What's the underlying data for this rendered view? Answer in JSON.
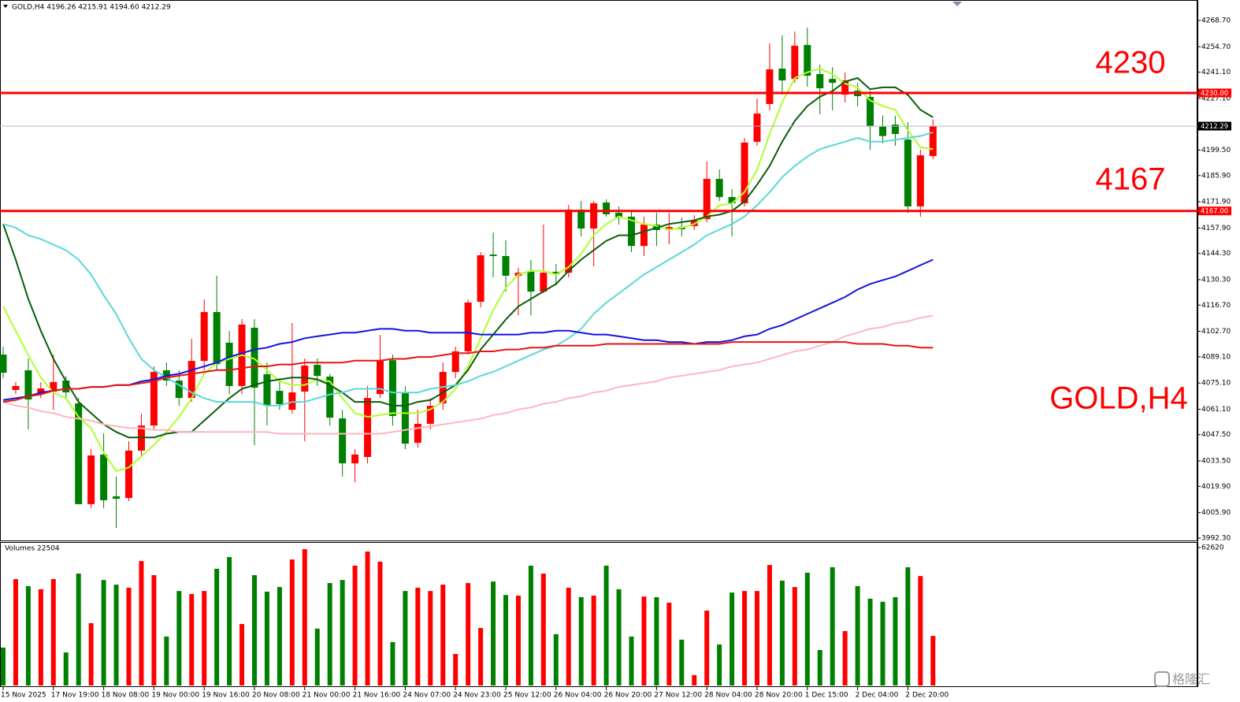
{
  "chart_data": [
    {
      "type": "candlestick",
      "title": "GOLD,H4  4196.26 4215.91 4194.60 4212.29",
      "categories": [
        "15 Nov 2025",
        null,
        null,
        null,
        "17 Nov 19:00",
        null,
        null,
        null,
        "18 Nov 08:00",
        null,
        null,
        null,
        "19 Nov 00:00",
        null,
        null,
        null,
        "19 Nov 16:00",
        null,
        null,
        null,
        "20 Nov 08:00",
        null,
        null,
        null,
        "21 Nov 00:00",
        null,
        null,
        null,
        "21 Nov 16:00",
        null,
        null,
        null,
        "24 Nov 07:00",
        null,
        null,
        null,
        "24 Nov 23:00",
        null,
        null,
        null,
        "25 Nov 12:00",
        null,
        null,
        null,
        "26 Nov 04:00",
        null,
        null,
        null,
        "26 Nov 20:00",
        null,
        null,
        null,
        "27 Nov 12:00",
        null,
        null,
        null,
        "28 Nov 04:00",
        null,
        null,
        null,
        "28 Nov 20:00",
        null,
        null,
        null,
        "1 Dec 15:00",
        null,
        null,
        null,
        "2 Dec 04:00",
        null,
        null,
        null,
        "2 Dec 20:00",
        null,
        null
      ],
      "open": [
        4090.3,
        4071.4,
        4081.9,
        4069.2,
        4070.5,
        4076.4,
        4064.2,
        4010.4,
        4036.9,
        4014.6,
        4013.7,
        4039.0,
        4052.4,
        4081.9,
        4076.4,
        4067.1,
        4086.9,
        4113.0,
        4096.6,
        4073.5,
        4104.6,
        4079.8,
        4070.9,
        4060.8,
        4070.5,
        4084.8,
        4078.5,
        4056.2,
        4032.2,
        4035.6,
        4069.2,
        4087.3,
        4070.1,
        4043.2,
        4053.3,
        4064.2,
        4081.0,
        4092.0,
        4118.5,
        4143.7,
        4142.9,
        4132.4,
        4134.5,
        4123.9,
        4134.5,
        4134.0,
        4167.7,
        4157.6,
        4171.5,
        4166.0,
        4163.9,
        4148.3,
        4159.7,
        4156.8,
        4158.4,
        4158.9,
        4162.6,
        4184.1,
        4174.4,
        4171.1,
        4203.9,
        4224.1,
        4243.0,
        4237.5,
        4255.6,
        4240.1,
        4237.5,
        4229.1,
        4231.2,
        4227.9,
        4212.0,
        4213.1,
        4205.1,
        4169.4,
        4196.26
      ],
      "high": [
        4094.5,
        4075.6,
        4088.2,
        4075.6,
        4090.3,
        4078.9,
        4067.1,
        4039.8,
        4048.2,
        4025.1,
        4044.0,
        4058.7,
        4084.0,
        4086.1,
        4081.9,
        4098.7,
        4119.7,
        4132.4,
        4102.9,
        4109.2,
        4109.2,
        4086.1,
        4077.7,
        4107.1,
        4088.2,
        4088.2,
        4079.8,
        4060.8,
        4039.8,
        4073.5,
        4100.8,
        4090.3,
        4073.5,
        4060.8,
        4067.1,
        4086.1,
        4094.5,
        4119.7,
        4145.0,
        4155.5,
        4151.3,
        4136.6,
        4140.8,
        4159.7,
        4138.7,
        4170.2,
        4172.3,
        4172.3,
        4173.2,
        4169.4,
        4166.9,
        4163.9,
        4166.0,
        4166.0,
        4163.5,
        4164.7,
        4193.4,
        4189.1,
        4178.6,
        4206.0,
        4227.0,
        4256.5,
        4260.7,
        4262.8,
        4264.9,
        4245.1,
        4243.8,
        4240.9,
        4235.4,
        4231.2,
        4218.0,
        4217.8,
        4214.4,
        4199.7,
        4215.91
      ],
      "low": [
        4077.7,
        4069.2,
        4050.3,
        4067.1,
        4060.8,
        4067.1,
        4010.4,
        4008.2,
        4008.2,
        3997.7,
        4012.0,
        4035.6,
        4050.3,
        4073.5,
        4062.9,
        4065.0,
        4081.9,
        4081.9,
        4069.2,
        4069.2,
        4041.9,
        4052.4,
        4060.8,
        4058.7,
        4044.0,
        4073.5,
        4052.4,
        4025.1,
        4022.1,
        4032.2,
        4067.1,
        4052.4,
        4039.8,
        4040.6,
        4050.3,
        4060.8,
        4077.7,
        4090.3,
        4115.5,
        4131.5,
        4123.9,
        4111.3,
        4111.3,
        4123.1,
        4127.3,
        4131.5,
        4153.4,
        4137.4,
        4163.9,
        4159.7,
        4145.0,
        4142.9,
        4148.3,
        4149.2,
        4153.4,
        4156.8,
        4161.0,
        4172.3,
        4153.4,
        4169.4,
        4201.8,
        4220.7,
        4229.1,
        4235.4,
        4233.3,
        4218.6,
        4220.7,
        4224.9,
        4222.8,
        4199.7,
        4203.0,
        4201.8,
        4166.0,
        4163.9,
        4194.6
      ],
      "close": [
        4080.6,
        4073.5,
        4066.3,
        4072.2,
        4075.6,
        4070.1,
        4010.4,
        4036.4,
        4012.5,
        4013.3,
        4039.0,
        4052.4,
        4081.0,
        4076.4,
        4067.1,
        4086.9,
        4113.0,
        4085.2,
        4073.5,
        4106.3,
        4072.6,
        4062.9,
        4063.8,
        4070.1,
        4084.4,
        4078.9,
        4056.6,
        4032.2,
        4036.9,
        4067.1,
        4087.3,
        4057.5,
        4042.7,
        4053.3,
        4062.9,
        4081.0,
        4092.0,
        4118.1,
        4143.3,
        4142.9,
        4132.4,
        4134.0,
        4123.9,
        4134.0,
        4133.2,
        4167.7,
        4157.6,
        4171.1,
        4165.2,
        4163.5,
        4148.3,
        4159.7,
        4156.8,
        4158.4,
        4157.2,
        4161.8,
        4184.1,
        4174.4,
        4171.1,
        4203.5,
        4219.0,
        4242.6,
        4236.7,
        4255.2,
        4239.2,
        4232.5,
        4235.4,
        4236.7,
        4228.3,
        4212.3,
        4207.0,
        4208.1,
        4169.4,
        4196.7,
        4212.29
      ],
      "up_color": "#ff0000",
      "down_color": "#008000",
      "overlays": [
        {
          "color": "#adff2f",
          "values": [
            4116,
            4103,
            4090,
            4078,
            4070,
            4067,
            4057,
            4051,
            4038,
            4028,
            4030,
            4036,
            4042,
            4049,
            4057,
            4067,
            4080,
            4086,
            4088,
            4090,
            4088,
            4082,
            4076,
            4074,
            4074,
            4077,
            4076,
            4067,
            4059,
            4057,
            4058,
            4059,
            4059,
            4059,
            4061,
            4065,
            4072,
            4084,
            4099,
            4114,
            4126,
            4133,
            4135,
            4135,
            4133,
            4137,
            4144,
            4154,
            4160,
            4164,
            4162,
            4160,
            4159,
            4157,
            4158,
            4160,
            4164,
            4170,
            4171,
            4177,
            4189,
            4208,
            4225,
            4238,
            4241,
            4243,
            4240,
            4235,
            4233,
            4226,
            4223,
            4221,
            4210,
            4201,
            4200
          ]
        },
        {
          "color": "#0b5d0b",
          "values": [
            4160,
            4141,
            4120,
            4103,
            4088,
            4076,
            4065,
            4059,
            4053,
            4049,
            4046,
            4046,
            4046,
            4048,
            4049,
            4049,
            4055,
            4061,
            4067,
            4072,
            4074,
            4076,
            4077,
            4078,
            4078,
            4077,
            4074,
            4070,
            4065,
            4065,
            4065,
            4063,
            4063,
            4065,
            4066,
            4070,
            4074,
            4082,
            4093,
            4101,
            4109,
            4116,
            4120,
            4124,
            4128,
            4135,
            4141,
            4146,
            4151,
            4154,
            4154,
            4156,
            4158,
            4160,
            4161,
            4162,
            4164,
            4165,
            4167,
            4172,
            4181,
            4191,
            4204,
            4215,
            4223,
            4228,
            4231,
            4236,
            4238,
            4232,
            4233,
            4233,
            4229,
            4221,
            4217
          ]
        },
        {
          "color": "#5ad8d8",
          "values": [
            4160,
            4158,
            4154,
            4152,
            4149,
            4146,
            4141,
            4133,
            4122,
            4112,
            4099,
            4088,
            4082,
            4078,
            4074,
            4070,
            4067,
            4065,
            4065,
            4065,
            4065,
            4063,
            4063,
            4065,
            4065,
            4067,
            4069,
            4070,
            4072,
            4072,
            4072,
            4070,
            4070,
            4070,
            4072,
            4073,
            4074,
            4076,
            4079,
            4081,
            4084,
            4087,
            4090,
            4093,
            4095,
            4099,
            4104,
            4112,
            4118,
            4123,
            4128,
            4133,
            4137,
            4141,
            4145,
            4149,
            4154,
            4157,
            4160,
            4164,
            4170,
            4177,
            4185,
            4191,
            4196,
            4200,
            4202,
            4204,
            4206,
            4204,
            4204,
            4205,
            4206,
            4207,
            4209
          ]
        },
        {
          "color": "#1414e0",
          "values": [
            4066,
            4067,
            4068,
            4070,
            4071,
            4072,
            4072,
            4073,
            4073,
            4074,
            4074,
            4076,
            4077,
            4079,
            4080,
            4082,
            4084,
            4086,
            4089,
            4091,
            4093,
            4094,
            4096,
            4097,
            4099,
            4100,
            4101,
            4102,
            4102,
            4103,
            4104,
            4104,
            4103,
            4103,
            4102,
            4102,
            4102,
            4102,
            4101,
            4101,
            4101,
            4101,
            4102,
            4102,
            4103,
            4103,
            4102,
            4101,
            4101,
            4100,
            4099,
            4098,
            4098,
            4097,
            4097,
            4096,
            4097,
            4097,
            4098,
            4100,
            4101,
            4104,
            4106,
            4109,
            4112,
            4115,
            4118,
            4121,
            4125,
            4128,
            4130,
            4132,
            4135,
            4138,
            4141
          ]
        },
        {
          "color": "#ffb6c1",
          "values": [
            4065,
            4063,
            4062,
            4060,
            4059,
            4057,
            4056,
            4055,
            4053,
            4052,
            4051,
            4051,
            4050,
            4050,
            4049,
            4049,
            4049,
            4049,
            4049,
            4049,
            4049,
            4049,
            4048,
            4048,
            4048,
            4048,
            4048,
            4048,
            4048,
            4048,
            4048,
            4049,
            4050,
            4051,
            4052,
            4053,
            4054,
            4055,
            4056,
            4058,
            4059,
            4061,
            4062,
            4064,
            4065,
            4067,
            4068,
            4070,
            4071,
            4073,
            4074,
            4075,
            4076,
            4078,
            4079,
            4080,
            4081,
            4082,
            4084,
            4085,
            4086,
            4088,
            4090,
            4092,
            4093,
            4095,
            4097,
            4100,
            4102,
            4104,
            4105,
            4107,
            4108,
            4110,
            4111
          ]
        },
        {
          "color": "#e81414",
          "values": [
            4065,
            4066,
            4068,
            4069,
            4071,
            4072,
            4072,
            4073,
            4073,
            4074,
            4074,
            4075,
            4076,
            4078,
            4079,
            4080,
            4081,
            4082,
            4082,
            4083,
            4084,
            4084,
            4085,
            4085,
            4086,
            4086,
            4086,
            4086,
            4087,
            4087,
            4087,
            4088,
            4088,
            4089,
            4089,
            4090,
            4091,
            4091,
            4092,
            4092,
            4093,
            4093,
            4094,
            4094,
            4095,
            4095,
            4095,
            4095,
            4096,
            4096,
            4096,
            4096,
            4096,
            4096,
            4096,
            4096,
            4096,
            4096,
            4097,
            4097,
            4097,
            4097,
            4097,
            4097,
            4097,
            4097,
            4097,
            4097,
            4096,
            4096,
            4096,
            4095,
            4095,
            4094,
            4094
          ]
        }
      ],
      "hlines": [
        {
          "value": 4230,
          "label": "4230.00",
          "color": "#ff0000",
          "tag_color": "#ff0000",
          "style": "thick"
        },
        {
          "value": 4167,
          "label": "4167.00",
          "color": "#ff0000",
          "tag_color": "#ff0000",
          "style": "thick"
        },
        {
          "value": 4212.29,
          "label": "4212.29",
          "color": "#b8b8c4",
          "tag_color": "#000000",
          "style": "thin"
        }
      ],
      "annotations": [
        {
          "text": "4230",
          "color": "#ff0000"
        },
        {
          "text": "4167",
          "color": "#ff0000"
        },
        {
          "text": "GOLD,H4",
          "color": "#ff0000"
        }
      ],
      "ylim": [
        3991,
        4278.8
      ],
      "yticks": [
        {
          "value": 4268.7,
          "label": "4268.70"
        },
        {
          "value": 4254.7,
          "label": "4254.70"
        },
        {
          "value": 4241.1,
          "label": "4241.10"
        },
        {
          "value": 4227.1,
          "label": "4227.10"
        },
        {
          "value": 4199.5,
          "label": "4199.50"
        },
        {
          "value": 4185.9,
          "label": "4185.90"
        },
        {
          "value": 4171.9,
          "label": "4171.90"
        },
        {
          "value": 4157.9,
          "label": "4157.90"
        },
        {
          "value": 4144.3,
          "label": "4144.30"
        },
        {
          "value": 4130.3,
          "label": "4130.30"
        },
        {
          "value": 4116.7,
          "label": "4116.70"
        },
        {
          "value": 4102.7,
          "label": "4102.70"
        },
        {
          "value": 4089.1,
          "label": "4089.10"
        },
        {
          "value": 4075.1,
          "label": "4075.10"
        },
        {
          "value": 4061.1,
          "label": "4061.10"
        },
        {
          "value": 4047.5,
          "label": "4047.50"
        },
        {
          "value": 4033.5,
          "label": "4033.50"
        },
        {
          "value": 4019.9,
          "label": "4019.90"
        },
        {
          "value": 4005.9,
          "label": "4005.90"
        },
        {
          "value": 3992.3,
          "label": "3992.30"
        }
      ],
      "grid": false
    },
    {
      "type": "bar",
      "title": "Volumes 22504",
      "values": [
        17200,
        48300,
        45100,
        43700,
        48300,
        15000,
        50800,
        28300,
        47900,
        45800,
        44400,
        56500,
        50100,
        22200,
        42900,
        41500,
        42900,
        53000,
        58300,
        27900,
        50100,
        42600,
        44700,
        57200,
        61900,
        25800,
        46500,
        47900,
        54400,
        60800,
        56200,
        19700,
        42900,
        44400,
        42900,
        45800,
        14300,
        46500,
        26100,
        47200,
        41100,
        40800,
        54400,
        50800,
        23300,
        44400,
        40100,
        40800,
        54400,
        43700,
        22200,
        40400,
        40100,
        37600,
        20800,
        4700,
        34000,
        18600,
        42200,
        42900,
        42900,
        54700,
        47600,
        44700,
        51200,
        16100,
        53700,
        24700,
        45100,
        39400,
        38000,
        40100,
        53700,
        49700,
        22504
      ],
      "ylim": [
        0,
        62620
      ],
      "yticks": [
        62620
      ],
      "grid": false
    }
  ],
  "watermark": "格隆汇"
}
